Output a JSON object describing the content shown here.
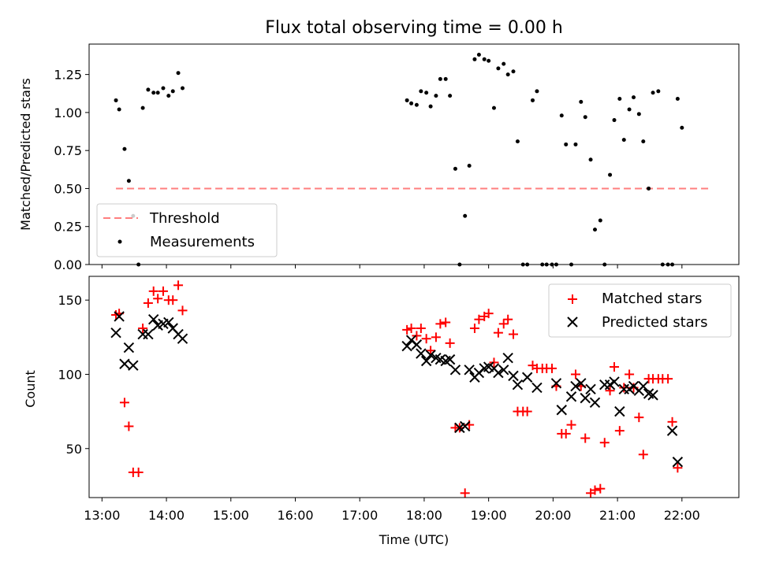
{
  "chart_data": [
    {
      "type": "scatter",
      "title": "Flux total observing time = 0.00 h",
      "xlabel": "",
      "ylabel": "Matched/Predicted stars",
      "xlim": [
        "12:48",
        "22:53"
      ],
      "ylim": [
        0,
        1.45
      ],
      "yticks": [
        0.0,
        0.25,
        0.5,
        0.75,
        1.0,
        1.25
      ],
      "ytick_labels": [
        "0.00",
        "0.25",
        "0.50",
        "0.75",
        "1.00",
        "1.25"
      ],
      "legend_position": "bottom-left",
      "threshold": {
        "name": "Threshold",
        "value": 0.5,
        "x_start": "13:13",
        "x_end": "22:25",
        "color": "#ff7f7f",
        "style": "dashed"
      },
      "series": [
        {
          "name": "Measurements",
          "color": "#000000",
          "marker": "dot",
          "points": [
            [
              "13:13",
              1.08
            ],
            [
              "13:16",
              1.02
            ],
            [
              "13:21",
              0.76
            ],
            [
              "13:25",
              0.55
            ],
            [
              "13:29",
              0.32
            ],
            [
              "13:34",
              0.0
            ],
            [
              "13:38",
              1.03
            ],
            [
              "13:43",
              1.15
            ],
            [
              "13:48",
              1.13
            ],
            [
              "13:52",
              1.13
            ],
            [
              "13:57",
              1.16
            ],
            [
              "14:02",
              1.11
            ],
            [
              "14:06",
              1.14
            ],
            [
              "14:11",
              1.26
            ],
            [
              "14:15",
              1.16
            ],
            [
              "17:44",
              1.08
            ],
            [
              "17:48",
              1.06
            ],
            [
              "17:53",
              1.05
            ],
            [
              "17:57",
              1.14
            ],
            [
              "18:02",
              1.13
            ],
            [
              "18:06",
              1.04
            ],
            [
              "18:11",
              1.11
            ],
            [
              "18:15",
              1.22
            ],
            [
              "18:20",
              1.22
            ],
            [
              "18:24",
              1.11
            ],
            [
              "18:29",
              0.63
            ],
            [
              "18:33",
              0.0
            ],
            [
              "18:38",
              0.32
            ],
            [
              "18:42",
              0.65
            ],
            [
              "18:47",
              1.35
            ],
            [
              "18:51",
              1.38
            ],
            [
              "18:56",
              1.35
            ],
            [
              "19:00",
              1.34
            ],
            [
              "19:05",
              1.03
            ],
            [
              "19:09",
              1.29
            ],
            [
              "19:14",
              1.32
            ],
            [
              "19:18",
              1.25
            ],
            [
              "19:23",
              1.27
            ],
            [
              "19:27",
              0.81
            ],
            [
              "19:32",
              0.0
            ],
            [
              "19:36",
              0.0
            ],
            [
              "19:41",
              1.08
            ],
            [
              "19:45",
              1.14
            ],
            [
              "19:50",
              0.0
            ],
            [
              "19:54",
              0.0
            ],
            [
              "19:59",
              0.0
            ],
            [
              "20:03",
              0.0
            ],
            [
              "20:08",
              0.98
            ],
            [
              "20:12",
              0.79
            ],
            [
              "20:17",
              0.0
            ],
            [
              "20:21",
              0.79
            ],
            [
              "20:26",
              1.07
            ],
            [
              "20:30",
              0.97
            ],
            [
              "20:35",
              0.69
            ],
            [
              "20:39",
              0.23
            ],
            [
              "20:44",
              0.29
            ],
            [
              "20:48",
              0.0
            ],
            [
              "20:53",
              0.59
            ],
            [
              "20:57",
              0.95
            ],
            [
              "21:02",
              1.09
            ],
            [
              "21:06",
              0.82
            ],
            [
              "21:11",
              1.02
            ],
            [
              "21:15",
              1.1
            ],
            [
              "21:20",
              0.99
            ],
            [
              "21:24",
              0.81
            ],
            [
              "21:29",
              0.5
            ],
            [
              "21:33",
              1.13
            ],
            [
              "21:38",
              1.14
            ],
            [
              "21:42",
              0.0
            ],
            [
              "21:47",
              0.0
            ],
            [
              "21:51",
              0.0
            ],
            [
              "21:56",
              1.09
            ],
            [
              "22:00",
              0.9
            ]
          ]
        }
      ]
    },
    {
      "type": "scatter",
      "title": "",
      "xlabel": "Time (UTC)",
      "ylabel": "Count",
      "xlim": [
        "12:48",
        "22:53"
      ],
      "ylim": [
        17,
        166
      ],
      "xticks": [
        "13:00",
        "14:00",
        "15:00",
        "16:00",
        "17:00",
        "18:00",
        "19:00",
        "20:00",
        "21:00",
        "22:00"
      ],
      "yticks": [
        50,
        100,
        150
      ],
      "ytick_labels": [
        "50",
        "100",
        "150"
      ],
      "legend_position": "top-right",
      "series": [
        {
          "name": "Matched stars",
          "color": "#ff0000",
          "marker": "plus",
          "points": [
            [
              "13:13",
              140
            ],
            [
              "13:16",
              141
            ],
            [
              "13:21",
              81
            ],
            [
              "13:25",
              65
            ],
            [
              "13:29",
              34
            ],
            [
              "13:34",
              34
            ],
            [
              "13:38",
              131
            ],
            [
              "13:43",
              148
            ],
            [
              "13:48",
              156
            ],
            [
              "13:52",
              151
            ],
            [
              "13:57",
              156
            ],
            [
              "14:02",
              150
            ],
            [
              "14:06",
              150
            ],
            [
              "14:11",
              160
            ],
            [
              "14:15",
              143
            ],
            [
              "17:44",
              130
            ],
            [
              "17:48",
              131
            ],
            [
              "17:53",
              126
            ],
            [
              "17:57",
              131
            ],
            [
              "18:02",
              124
            ],
            [
              "18:06",
              116
            ],
            [
              "18:11",
              125
            ],
            [
              "18:15",
              134
            ],
            [
              "18:20",
              135
            ],
            [
              "18:24",
              121
            ],
            [
              "18:29",
              64
            ],
            [
              "18:33",
              64
            ],
            [
              "18:38",
              20
            ],
            [
              "18:42",
              66
            ],
            [
              "18:47",
              131
            ],
            [
              "18:51",
              137
            ],
            [
              "18:56",
              139
            ],
            [
              "19:00",
              141
            ],
            [
              "19:05",
              108
            ],
            [
              "19:09",
              128
            ],
            [
              "19:14",
              134
            ],
            [
              "19:18",
              137
            ],
            [
              "19:23",
              127
            ],
            [
              "19:27",
              75
            ],
            [
              "19:32",
              75
            ],
            [
              "19:36",
              75
            ],
            [
              "19:41",
              106
            ],
            [
              "19:45",
              104
            ],
            [
              "19:50",
              104
            ],
            [
              "19:54",
              104
            ],
            [
              "19:59",
              104
            ],
            [
              "20:03",
              92
            ],
            [
              "20:08",
              60
            ],
            [
              "20:12",
              60
            ],
            [
              "20:17",
              66
            ],
            [
              "20:21",
              100
            ],
            [
              "20:26",
              92
            ],
            [
              "20:30",
              57
            ],
            [
              "20:35",
              20
            ],
            [
              "20:39",
              22
            ],
            [
              "20:44",
              23
            ],
            [
              "20:48",
              54
            ],
            [
              "20:53",
              89
            ],
            [
              "20:57",
              105
            ],
            [
              "21:02",
              62
            ],
            [
              "21:06",
              91
            ],
            [
              "21:11",
              100
            ],
            [
              "21:15",
              91
            ],
            [
              "21:20",
              71
            ],
            [
              "21:24",
              46
            ],
            [
              "21:29",
              97
            ],
            [
              "21:33",
              97
            ],
            [
              "21:38",
              97
            ],
            [
              "21:42",
              97
            ],
            [
              "21:47",
              97
            ],
            [
              "21:51",
              68
            ],
            [
              "21:56",
              37
            ]
          ]
        },
        {
          "name": "Predicted stars",
          "color": "#000000",
          "marker": "x",
          "points": [
            [
              "13:13",
              128
            ],
            [
              "13:16",
              139
            ],
            [
              "13:21",
              107
            ],
            [
              "13:25",
              118
            ],
            [
              "13:29",
              106
            ],
            [
              "13:38",
              127
            ],
            [
              "13:43",
              127
            ],
            [
              "13:48",
              137
            ],
            [
              "13:52",
              133
            ],
            [
              "13:57",
              134
            ],
            [
              "14:02",
              135
            ],
            [
              "14:06",
              131
            ],
            [
              "14:11",
              127
            ],
            [
              "14:15",
              124
            ],
            [
              "17:44",
              119
            ],
            [
              "17:48",
              123
            ],
            [
              "17:53",
              120
            ],
            [
              "17:57",
              114
            ],
            [
              "18:02",
              109
            ],
            [
              "18:06",
              113
            ],
            [
              "18:11",
              111
            ],
            [
              "18:15",
              110
            ],
            [
              "18:20",
              109
            ],
            [
              "18:24",
              110
            ],
            [
              "18:29",
              103
            ],
            [
              "18:33",
              64
            ],
            [
              "18:38",
              65
            ],
            [
              "18:42",
              103
            ],
            [
              "18:47",
              98
            ],
            [
              "18:51",
              101
            ],
            [
              "18:56",
              104
            ],
            [
              "19:00",
              105
            ],
            [
              "19:05",
              104
            ],
            [
              "19:09",
              101
            ],
            [
              "19:14",
              103
            ],
            [
              "19:18",
              111
            ],
            [
              "19:23",
              99
            ],
            [
              "19:27",
              93
            ],
            [
              "19:36",
              98
            ],
            [
              "19:45",
              91
            ],
            [
              "20:03",
              94
            ],
            [
              "20:08",
              76
            ],
            [
              "20:17",
              85
            ],
            [
              "20:21",
              92
            ],
            [
              "20:26",
              94
            ],
            [
              "20:30",
              84
            ],
            [
              "20:35",
              90
            ],
            [
              "20:39",
              81
            ],
            [
              "20:48",
              93
            ],
            [
              "20:53",
              93
            ],
            [
              "20:57",
              95
            ],
            [
              "21:02",
              75
            ],
            [
              "21:06",
              90
            ],
            [
              "21:11",
              90
            ],
            [
              "21:15",
              92
            ],
            [
              "21:20",
              89
            ],
            [
              "21:24",
              92
            ],
            [
              "21:29",
              87
            ],
            [
              "21:33",
              86
            ],
            [
              "21:51",
              62
            ],
            [
              "21:56",
              41
            ]
          ]
        }
      ]
    }
  ]
}
